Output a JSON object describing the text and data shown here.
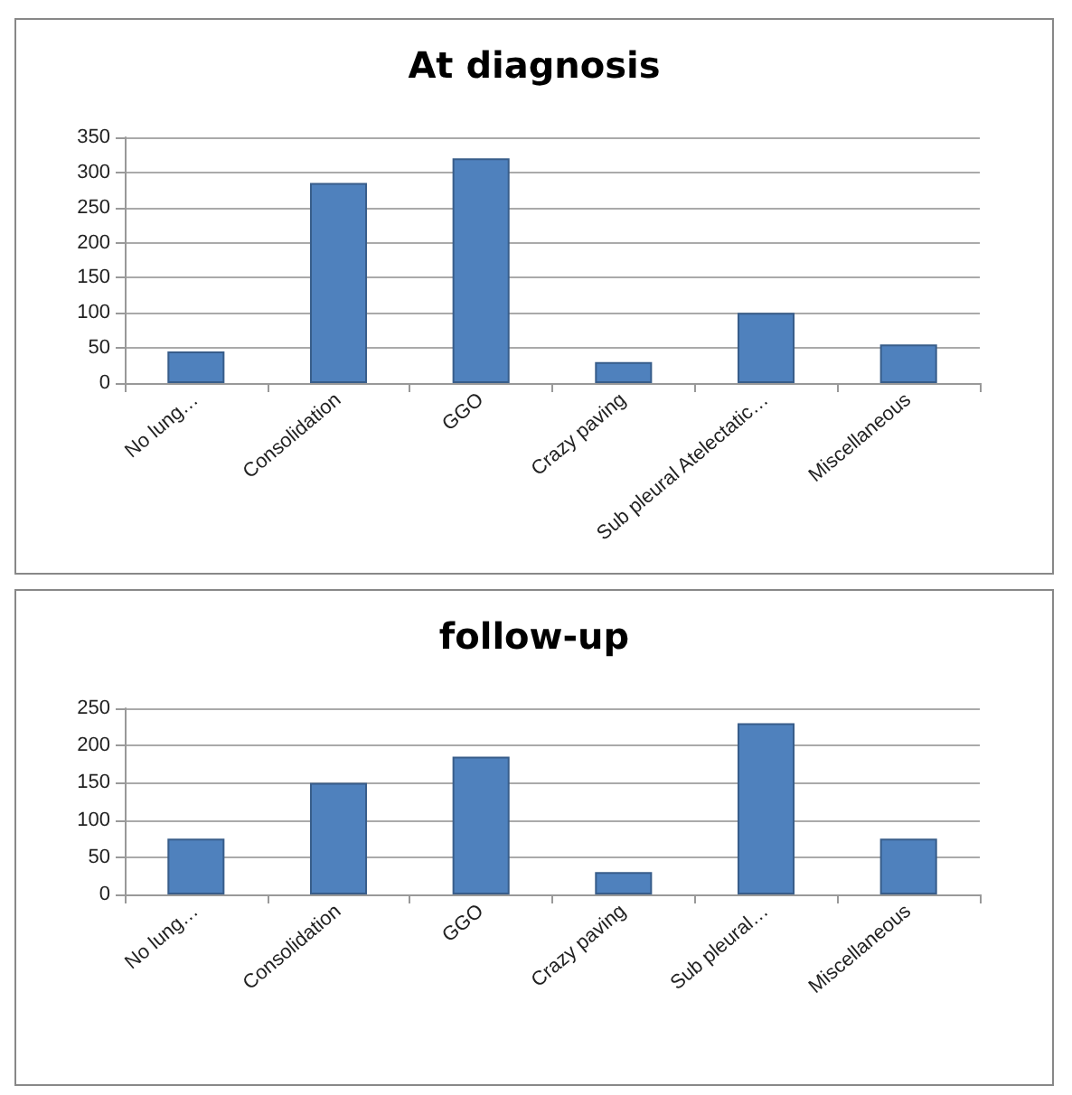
{
  "chart_data": [
    {
      "type": "bar",
      "title": "At diagnosis",
      "categories": [
        "No lung…",
        "Consolidation",
        "GGO",
        "Crazy paving",
        "Sub pleural Atelectatic…",
        "Miscellaneous"
      ],
      "values": [
        45,
        285,
        320,
        30,
        100,
        55
      ],
      "color": "#4f81bd",
      "ylim": [
        0,
        350
      ],
      "yticks": [
        0,
        50,
        100,
        150,
        200,
        250,
        300,
        350
      ],
      "grid": "y"
    },
    {
      "type": "bar",
      "title": "follow-up",
      "categories": [
        "No lung…",
        "Consolidation",
        "GGO",
        "Crazy paving",
        "Sub pleural…",
        "Miscellaneous"
      ],
      "values": [
        75,
        150,
        185,
        30,
        230,
        75
      ],
      "color": "#4f81bd",
      "ylim": [
        0,
        250
      ],
      "yticks": [
        0,
        50,
        100,
        150,
        200,
        250
      ],
      "grid": "y"
    }
  ]
}
